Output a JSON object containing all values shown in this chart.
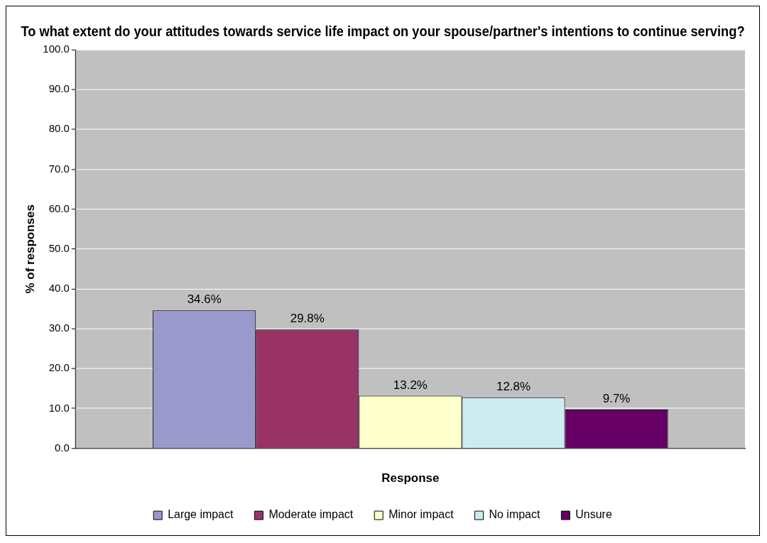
{
  "chart_data": {
    "type": "bar",
    "title": "To what extent do your attitudes towards service life impact on your spouse/partner's intentions to continue serving?",
    "xlabel": "Response",
    "ylabel": "% of responses",
    "categories": [
      null
    ],
    "series": [
      {
        "name": "Large impact",
        "color": "#9999cc",
        "values": [
          34.6
        ],
        "value_labels": [
          "34.6%"
        ]
      },
      {
        "name": "Moderate impact",
        "color": "#993366",
        "values": [
          29.8
        ],
        "value_labels": [
          "29.8%"
        ]
      },
      {
        "name": "Minor impact",
        "color": "#ffffcc",
        "values": [
          13.2
        ],
        "value_labels": [
          "13.2%"
        ]
      },
      {
        "name": "No impact",
        "color": "#ccecf0",
        "values": [
          12.8
        ],
        "value_labels": [
          "12.8%"
        ]
      },
      {
        "name": "Unsure",
        "color": "#660066",
        "values": [
          9.7
        ],
        "value_labels": [
          "9.7%"
        ]
      }
    ],
    "ylim": [
      0,
      100
    ],
    "yticks": [
      {
        "value": 0,
        "label": "0.0"
      },
      {
        "value": 10,
        "label": "10.0"
      },
      {
        "value": 20,
        "label": "20.0"
      },
      {
        "value": 30,
        "label": "30.0"
      },
      {
        "value": 40,
        "label": "40.0"
      },
      {
        "value": 50,
        "label": "50.0"
      },
      {
        "value": 60,
        "label": "60.0"
      },
      {
        "value": 70,
        "label": "70.0"
      },
      {
        "value": 80,
        "label": "80.0"
      },
      {
        "value": 90,
        "label": "90.0"
      },
      {
        "value": 100,
        "label": "100.0"
      }
    ],
    "grid": "y",
    "legend": "bottom"
  }
}
